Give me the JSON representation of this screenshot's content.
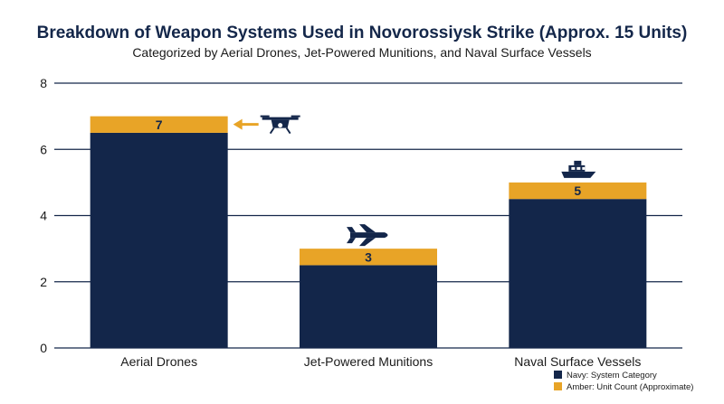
{
  "chart_data": {
    "type": "bar",
    "title": "Breakdown of Weapon Systems Used in Novorossiysk Strike (Approx. 15 Units)",
    "subtitle": "Categorized by Aerial Drones, Jet-Powered Munitions, and Naval Surface Vessels",
    "categories": [
      "Aerial Drones",
      "Jet-Powered Munitions",
      "Naval Surface Vessels"
    ],
    "values": [
      7,
      3,
      5
    ],
    "data_labels": [
      "7",
      "3",
      "5"
    ],
    "icons": [
      "drone-icon",
      "jet-icon",
      "boat-icon"
    ],
    "ylim": [
      0,
      8
    ],
    "yticks": [
      0,
      2,
      4,
      6,
      8
    ],
    "grid": true,
    "legend_position": "bottom-right",
    "legend": [
      {
        "label": "Navy: System Category",
        "color": "#13264a"
      },
      {
        "label": "Amber: Unit Count (Approximate)",
        "color": "#e8a427"
      }
    ],
    "colors": {
      "navy": "#13264a",
      "amber": "#e8a427"
    }
  }
}
